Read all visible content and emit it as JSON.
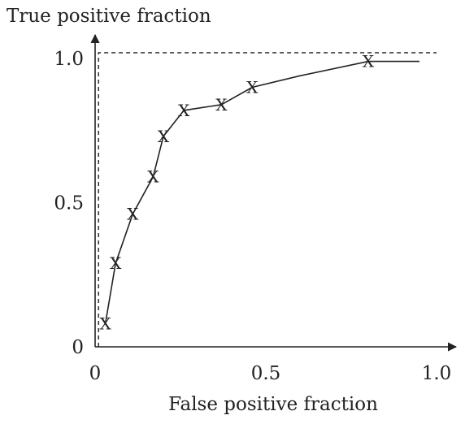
{
  "chart_data": {
    "type": "line",
    "title": "",
    "xlabel": "False positive fraction",
    "ylabel": "True positive fraction",
    "xlim": [
      0,
      1.0
    ],
    "ylim": [
      0,
      1.0
    ],
    "x_ticks": [
      "0",
      "0.5",
      "1.0"
    ],
    "y_ticks": [
      "0",
      "0.5",
      "1.0"
    ],
    "grid": false,
    "legend": "none",
    "marker": "X",
    "series": [
      {
        "x": [
          0.03,
          0.06,
          0.11,
          0.17,
          0.2,
          0.26,
          0.37,
          0.46,
          0.6,
          0.8,
          0.95
        ],
        "y": [
          0.08,
          0.29,
          0.46,
          0.59,
          0.73,
          0.82,
          0.84,
          0.9,
          0.94,
          0.99,
          0.99
        ],
        "markers": [
          true,
          true,
          true,
          true,
          true,
          true,
          true,
          true,
          false,
          true,
          false
        ]
      }
    ],
    "reference_lines": [
      {
        "x": [
          0.01,
          0.01,
          1.0
        ],
        "y": [
          0,
          1.02,
          1.02
        ],
        "style": "dashed"
      }
    ],
    "colors": {
      "line": "#222222",
      "axis": "#222222"
    }
  }
}
